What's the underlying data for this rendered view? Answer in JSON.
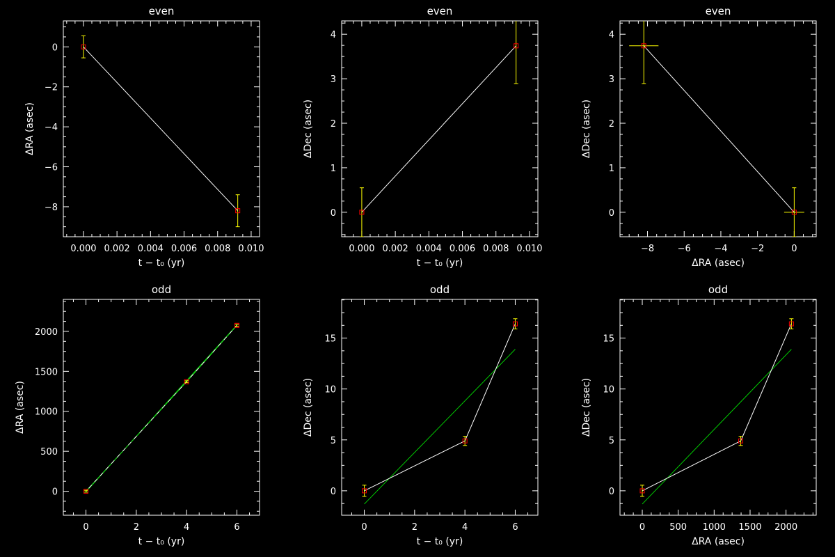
{
  "colors": {
    "background": "#000000",
    "axes": "#ffffff",
    "data_line": "#ffffff",
    "error_bar": "#ffff00",
    "marker": "#ff0000",
    "fit_line": "#00cc00"
  },
  "chart_data": [
    {
      "type": "scatter",
      "title": "even",
      "xlabel": "t − t₀ (yr)",
      "ylabel": "ΔRA (asec)",
      "xlim": [
        -0.0012,
        0.0105
      ],
      "ylim": [
        -9.5,
        1.3
      ],
      "xticks": [
        0,
        0.002,
        0.004,
        0.006,
        0.008,
        0.01
      ],
      "xtick_labels": [
        "0.000",
        "0.002",
        "0.004",
        "0.006",
        "0.008",
        "0.010"
      ],
      "yticks": [
        -8,
        -6,
        -4,
        -2,
        0
      ],
      "ytick_labels": [
        "−8",
        "−6",
        "−4",
        "−2",
        "0"
      ],
      "series": [
        {
          "x": [
            0,
            0.0092
          ],
          "y": [
            0,
            -8.2
          ],
          "yerr": [
            0.55,
            0.8
          ],
          "xerr": [
            0,
            0
          ]
        }
      ],
      "fit": null
    },
    {
      "type": "scatter",
      "title": "even",
      "xlabel": "t − t₀ (yr)",
      "ylabel": "ΔDec (asec)",
      "xlim": [
        -0.0012,
        0.0105
      ],
      "ylim": [
        -0.55,
        4.3
      ],
      "xticks": [
        0,
        0.002,
        0.004,
        0.006,
        0.008,
        0.01
      ],
      "xtick_labels": [
        "0.000",
        "0.002",
        "0.004",
        "0.006",
        "0.008",
        "0.010"
      ],
      "yticks": [
        0,
        1,
        2,
        3,
        4
      ],
      "ytick_labels": [
        "0",
        "1",
        "2",
        "3",
        "4"
      ],
      "series": [
        {
          "x": [
            0,
            0.0092
          ],
          "y": [
            0,
            3.74
          ],
          "yerr": [
            0.55,
            0.85
          ],
          "xerr": [
            0,
            0
          ]
        }
      ],
      "fit": null
    },
    {
      "type": "scatter",
      "title": "even",
      "xlabel": "ΔRA (asec)",
      "ylabel": "ΔDec (asec)",
      "xlim": [
        -9.5,
        1.2
      ],
      "ylim": [
        -0.55,
        4.3
      ],
      "xticks": [
        -8,
        -6,
        -4,
        -2,
        0
      ],
      "xtick_labels": [
        "−8",
        "−6",
        "−4",
        "−2",
        "0"
      ],
      "yticks": [
        0,
        1,
        2,
        3,
        4
      ],
      "ytick_labels": [
        "0",
        "1",
        "2",
        "3",
        "4"
      ],
      "series": [
        {
          "x": [
            -8.2,
            0
          ],
          "y": [
            3.74,
            0
          ],
          "yerr": [
            0.85,
            0.55
          ],
          "xerr": [
            0.8,
            0.55
          ]
        }
      ],
      "fit": null
    },
    {
      "type": "scatter",
      "title": "odd",
      "xlabel": "t − t₀ (yr)",
      "ylabel": "ΔRA (asec)",
      "xlim": [
        -0.9,
        6.9
      ],
      "ylim": [
        -300,
        2400
      ],
      "xticks": [
        0,
        2,
        4,
        6
      ],
      "xtick_labels": [
        "0",
        "2",
        "4",
        "6"
      ],
      "yticks": [
        0,
        500,
        1000,
        1500,
        2000
      ],
      "ytick_labels": [
        "0",
        "500",
        "1000",
        "1500",
        "2000"
      ],
      "series": [
        {
          "x": [
            0,
            4,
            6
          ],
          "y": [
            0,
            1370,
            2075
          ],
          "yerr": [
            12,
            12,
            12
          ],
          "xerr": [
            0,
            0,
            0
          ]
        }
      ],
      "fit": {
        "x": [
          0,
          6
        ],
        "y": [
          -8,
          2080
        ]
      }
    },
    {
      "type": "scatter",
      "title": "odd",
      "xlabel": "t − t₀ (yr)",
      "ylabel": "ΔDec (asec)",
      "xlim": [
        -0.9,
        6.9
      ],
      "ylim": [
        -2.4,
        18.8
      ],
      "xticks": [
        0,
        2,
        4,
        6
      ],
      "xtick_labels": [
        "0",
        "2",
        "4",
        "6"
      ],
      "yticks": [
        0,
        5,
        10,
        15
      ],
      "ytick_labels": [
        "0",
        "5",
        "10",
        "15"
      ],
      "series": [
        {
          "x": [
            0,
            4,
            6
          ],
          "y": [
            0,
            4.9,
            16.4
          ],
          "yerr": [
            0.55,
            0.45,
            0.5
          ],
          "xerr": [
            0,
            0,
            0
          ]
        }
      ],
      "fit": {
        "x": [
          0,
          6
        ],
        "y": [
          -1.3,
          13.9
        ]
      }
    },
    {
      "type": "scatter",
      "title": "odd",
      "xlabel": "ΔRA (asec)",
      "ylabel": "ΔDec (asec)",
      "xlim": [
        -310,
        2420
      ],
      "ylim": [
        -2.4,
        18.8
      ],
      "xticks": [
        0,
        500,
        1000,
        1500,
        2000
      ],
      "xtick_labels": [
        "0",
        "500",
        "1000",
        "1500",
        "2000"
      ],
      "yticks": [
        0,
        5,
        10,
        15
      ],
      "ytick_labels": [
        "0",
        "5",
        "10",
        "15"
      ],
      "series": [
        {
          "x": [
            0,
            1370,
            2075
          ],
          "y": [
            0,
            4.9,
            16.4
          ],
          "yerr": [
            0.55,
            0.45,
            0.5
          ],
          "xerr": [
            0,
            0,
            0
          ]
        }
      ],
      "fit": {
        "x": [
          0,
          2075
        ],
        "y": [
          -1.3,
          13.9
        ]
      }
    }
  ]
}
